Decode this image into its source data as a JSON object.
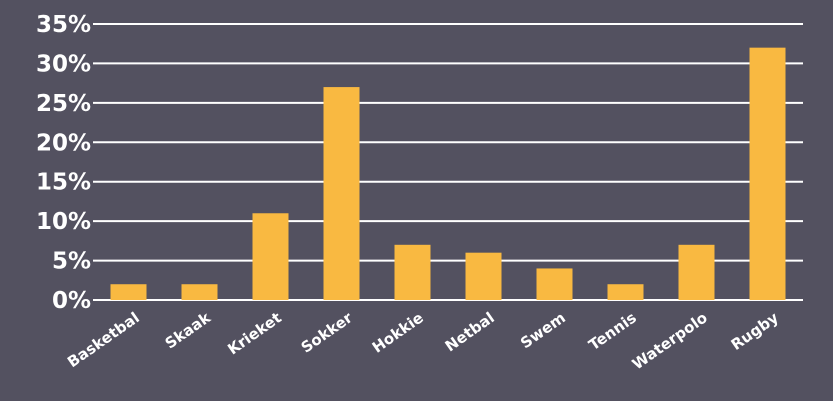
{
  "chart_data": {
    "type": "bar",
    "categories": [
      "Basketbal",
      "Skaak",
      "Krieket",
      "Sokker",
      "Hokkie",
      "Netbal",
      "Swem",
      "Tennis",
      "Waterpolo",
      "Rugby"
    ],
    "values": [
      2,
      2,
      11,
      27,
      7,
      6,
      4,
      2,
      7,
      32
    ],
    "value_unit": "%",
    "ylim": [
      0,
      35
    ],
    "y_ticks": [
      0,
      5,
      10,
      15,
      20,
      25,
      30,
      35
    ],
    "y_tick_labels": [
      "0%",
      "5%",
      "10%",
      "15%",
      "20%",
      "25%",
      "30%",
      "35%"
    ],
    "title": "",
    "xlabel": "",
    "ylabel": "",
    "grid": true,
    "legend": "none",
    "colors": {
      "background": "#535160",
      "bar": "#F9B941",
      "gridline": "#ffffff",
      "text": "#ffffff"
    }
  }
}
